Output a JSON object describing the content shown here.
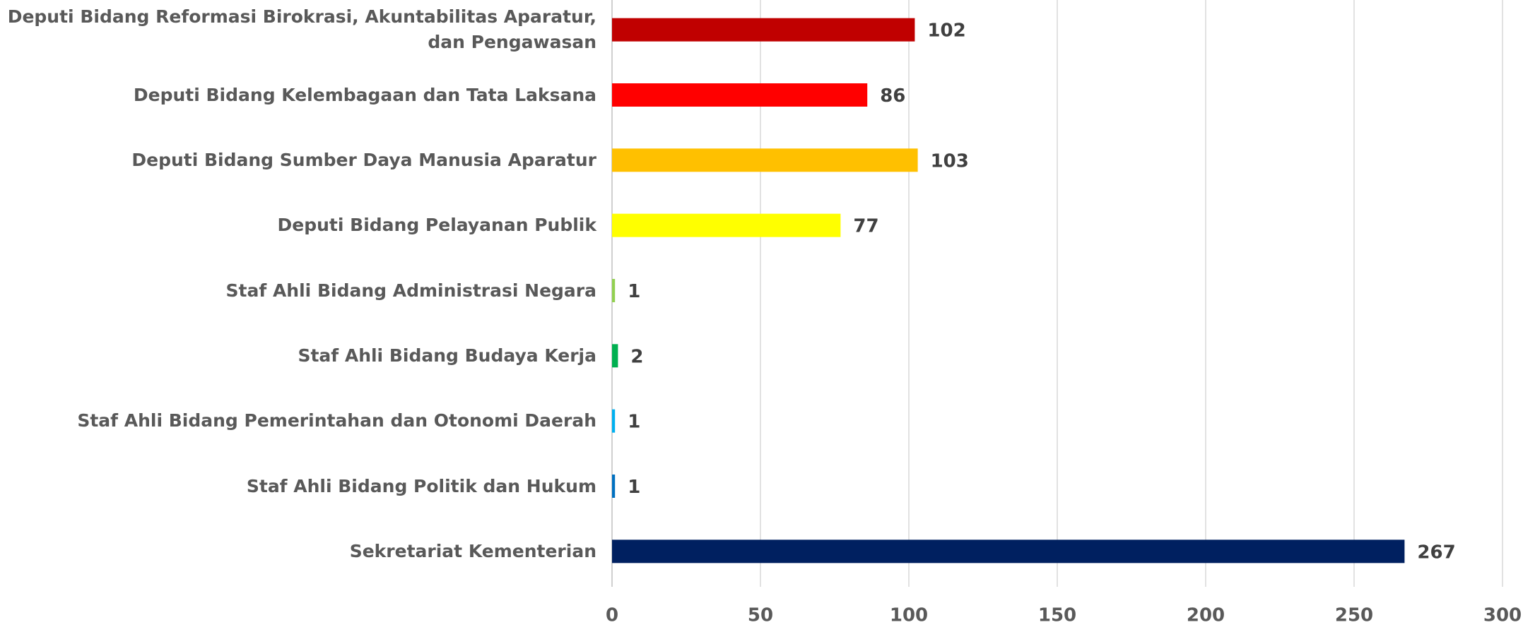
{
  "chart_data": {
    "type": "barh",
    "categories": [
      "Deputi Bidang Reformasi Birokrasi, Akuntabilitas Aparatur, dan Pengawasan",
      "Deputi Bidang Kelembagaan dan Tata Laksana",
      "Deputi Bidang Sumber Daya Manusia Aparatur",
      "Deputi Bidang Pelayanan Publik",
      "Staf Ahli Bidang Administrasi Negara",
      "Staf Ahli Bidang Budaya Kerja",
      "Staf Ahli Bidang Pemerintahan dan Otonomi Daerah",
      "Staf Ahli Bidang Politik dan Hukum",
      "Sekretariat Kementerian"
    ],
    "values": [
      102,
      86,
      103,
      77,
      1,
      2,
      1,
      1,
      267
    ],
    "colors": [
      "#c00000",
      "#ff0000",
      "#ffc000",
      "#ffff00",
      "#92d050",
      "#00b050",
      "#00b0f0",
      "#0070c0",
      "#002060"
    ],
    "xlim": [
      0,
      300
    ],
    "xticks": [
      0,
      50,
      100,
      150,
      200,
      250,
      300
    ],
    "grid": true
  }
}
